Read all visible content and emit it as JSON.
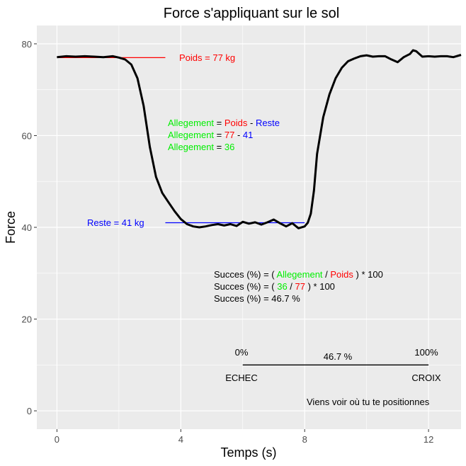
{
  "chart_data": {
    "type": "line",
    "title": "Force s'appliquant sur le sol",
    "xlabel": "Temps (s)",
    "ylabel": "Force",
    "xlim": [
      -0.65,
      13.05
    ],
    "ylim": [
      -4,
      84
    ],
    "x_ticks": [
      0,
      4,
      8,
      12
    ],
    "y_ticks": [
      0,
      20,
      40,
      60,
      80
    ],
    "x_tick_labels": [
      "0",
      "4",
      "8",
      "12"
    ],
    "y_tick_labels": [
      "0",
      "20",
      "40",
      "60",
      "80"
    ],
    "grid": true,
    "series": [
      {
        "name": "Force",
        "color": "#000000",
        "points": [
          [
            0.0,
            77.1
          ],
          [
            0.3,
            77.3
          ],
          [
            0.6,
            77.2
          ],
          [
            0.9,
            77.3
          ],
          [
            1.2,
            77.2
          ],
          [
            1.5,
            77.1
          ],
          [
            1.8,
            77.3
          ],
          [
            2.0,
            77.0
          ],
          [
            2.2,
            76.6
          ],
          [
            2.4,
            75.5
          ],
          [
            2.6,
            72.5
          ],
          [
            2.8,
            66.5
          ],
          [
            3.0,
            57.5
          ],
          [
            3.2,
            51.0
          ],
          [
            3.4,
            47.5
          ],
          [
            3.6,
            45.5
          ],
          [
            3.8,
            43.5
          ],
          [
            4.0,
            41.8
          ],
          [
            4.2,
            40.7
          ],
          [
            4.4,
            40.2
          ],
          [
            4.6,
            40.0
          ],
          [
            4.8,
            40.2
          ],
          [
            5.0,
            40.5
          ],
          [
            5.2,
            40.7
          ],
          [
            5.4,
            40.4
          ],
          [
            5.6,
            40.7
          ],
          [
            5.8,
            40.3
          ],
          [
            6.0,
            41.2
          ],
          [
            6.2,
            40.8
          ],
          [
            6.4,
            41.1
          ],
          [
            6.6,
            40.6
          ],
          [
            6.8,
            41.1
          ],
          [
            7.0,
            41.7
          ],
          [
            7.2,
            40.9
          ],
          [
            7.4,
            40.2
          ],
          [
            7.6,
            40.9
          ],
          [
            7.8,
            39.8
          ],
          [
            8.0,
            40.2
          ],
          [
            8.1,
            41.0
          ],
          [
            8.2,
            43.0
          ],
          [
            8.3,
            48.0
          ],
          [
            8.4,
            56.0
          ],
          [
            8.6,
            64.0
          ],
          [
            8.8,
            69.0
          ],
          [
            9.0,
            72.5
          ],
          [
            9.2,
            74.8
          ],
          [
            9.4,
            76.2
          ],
          [
            9.6,
            76.8
          ],
          [
            9.8,
            77.3
          ],
          [
            10.0,
            77.5
          ],
          [
            10.2,
            77.2
          ],
          [
            10.4,
            77.3
          ],
          [
            10.6,
            77.3
          ],
          [
            10.8,
            76.6
          ],
          [
            11.0,
            76.0
          ],
          [
            11.2,
            77.1
          ],
          [
            11.4,
            77.8
          ],
          [
            11.5,
            78.6
          ],
          [
            11.6,
            78.4
          ],
          [
            11.8,
            77.2
          ],
          [
            12.0,
            77.3
          ],
          [
            12.2,
            77.2
          ],
          [
            12.4,
            77.3
          ],
          [
            12.6,
            77.3
          ],
          [
            12.8,
            77.1
          ],
          [
            13.05,
            77.6
          ]
        ]
      }
    ],
    "reference_lines": [
      {
        "name": "poids-line",
        "x_start": 0,
        "x_end": 3.5,
        "y": 77,
        "color": "#ff0000"
      },
      {
        "name": "reste-line",
        "x_start": 3.5,
        "x_end": 8,
        "y": 41,
        "color": "#0000ff"
      },
      {
        "name": "scale-line",
        "x_start": 6,
        "x_end": 12,
        "y": 10,
        "color": "#000000"
      }
    ],
    "annotations": {
      "poids_label": "Poids = 77 kg",
      "reste_label": "Reste = 41 kg",
      "allegement_formula": {
        "line1": {
          "a": "Allegement",
          "eq": " = ",
          "b": "Poids",
          "op": " - ",
          "c": "Reste"
        },
        "line2": {
          "a": "Allegement",
          "eq": " = ",
          "b": "77",
          "op": " - ",
          "c": "41"
        },
        "line3": {
          "a": "Allegement",
          "eq": " = ",
          "b": "36"
        }
      },
      "succes_formula": {
        "line1": {
          "pre": "Succes (%) = ( ",
          "a": "Allegement",
          "op": " / ",
          "b": "Poids",
          "post": " ) * 100"
        },
        "line2": {
          "pre": "Succes (%) = ( ",
          "a": "36",
          "op": " / ",
          "b": "77",
          "post": " ) * 100"
        },
        "line3": {
          "pre": "Succes (%) = 46.7 %"
        }
      },
      "scale": {
        "left_pct": "0%",
        "right_pct": "100%",
        "mid_pct": "46.7 %",
        "left_label": "ECHEC",
        "right_label": "CROIX"
      },
      "invite": "Viens voir où tu te positionnes"
    },
    "colors": {
      "panel": "#ebebeb",
      "grid": "#ffffff",
      "allegement": "#00ee00",
      "poids": "#ff0000",
      "reste": "#0000ff",
      "text": "#000000"
    }
  }
}
